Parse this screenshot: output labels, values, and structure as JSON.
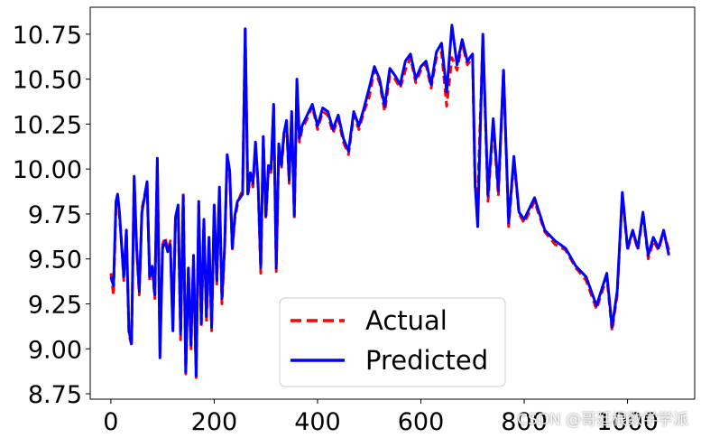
{
  "chart_data": {
    "type": "line",
    "xlim": [
      -40,
      1130
    ],
    "ylim": [
      8.72,
      10.9
    ],
    "x_ticks": [
      0,
      200,
      400,
      600,
      800,
      1000
    ],
    "y_ticks": [
      8.75,
      9.0,
      9.25,
      9.5,
      9.75,
      10.0,
      10.25,
      10.5,
      10.75
    ],
    "x_tick_labels": [
      "0",
      "200",
      "400",
      "600",
      "800",
      "1000"
    ],
    "y_tick_labels": [
      "8.75",
      "9.00",
      "9.25",
      "9.50",
      "9.75",
      "10.00",
      "10.25",
      "10.50",
      "10.75"
    ],
    "grid": false,
    "legend_position": "lower-center",
    "series": [
      {
        "name": "Actual",
        "style": "dashed",
        "color": "#ff0000",
        "x": [
          0,
          5,
          10,
          13,
          17,
          20,
          25,
          30,
          35,
          40,
          45,
          50,
          55,
          60,
          65,
          70,
          75,
          80,
          85,
          90,
          95,
          100,
          105,
          110,
          115,
          120,
          125,
          130,
          135,
          140,
          145,
          150,
          155,
          160,
          165,
          170,
          175,
          180,
          185,
          190,
          195,
          200,
          205,
          210,
          215,
          220,
          225,
          230,
          235,
          240,
          245,
          250,
          255,
          260,
          265,
          270,
          275,
          280,
          285,
          290,
          295,
          300,
          305,
          310,
          315,
          320,
          325,
          330,
          335,
          340,
          345,
          350,
          355,
          360,
          365,
          370,
          380,
          390,
          400,
          410,
          420,
          430,
          440,
          450,
          460,
          470,
          480,
          490,
          500,
          510,
          520,
          530,
          540,
          550,
          560,
          570,
          580,
          590,
          600,
          610,
          620,
          630,
          640,
          650,
          660,
          670,
          680,
          690,
          700,
          705,
          710,
          720,
          730,
          740,
          750,
          760,
          770,
          780,
          790,
          800,
          820,
          840,
          860,
          880,
          900,
          920,
          940,
          960,
          970,
          980,
          990,
          1000,
          1010,
          1020,
          1030,
          1040,
          1050,
          1060,
          1070,
          1080
        ],
        "y": [
          9.42,
          9.3,
          9.8,
          9.86,
          9.72,
          9.62,
          9.38,
          9.66,
          9.08,
          9.02,
          9.95,
          9.55,
          9.3,
          9.78,
          9.85,
          9.92,
          9.38,
          9.45,
          9.28,
          10.05,
          9.0,
          9.58,
          9.62,
          9.55,
          9.6,
          9.12,
          9.72,
          9.78,
          9.05,
          9.87,
          8.86,
          9.45,
          9.0,
          9.5,
          8.84,
          9.8,
          9.12,
          9.7,
          9.15,
          9.6,
          9.1,
          9.78,
          9.36,
          9.88,
          9.25,
          9.55,
          10.05,
          9.98,
          9.55,
          9.72,
          9.8,
          9.85,
          9.88,
          10.78,
          9.85,
          9.96,
          9.9,
          10.12,
          9.9,
          9.42,
          10.18,
          9.72,
          10.0,
          9.98,
          10.35,
          9.43,
          10.12,
          10.0,
          10.18,
          10.25,
          9.92,
          10.3,
          9.72,
          10.45,
          10.15,
          10.22,
          10.28,
          10.35,
          10.22,
          10.32,
          10.3,
          10.2,
          10.28,
          10.15,
          10.08,
          10.3,
          10.22,
          10.32,
          10.4,
          10.55,
          10.48,
          10.32,
          10.52,
          10.5,
          10.45,
          10.55,
          10.62,
          10.48,
          10.55,
          10.58,
          10.45,
          10.62,
          10.65,
          10.35,
          10.62,
          10.55,
          10.7,
          10.58,
          10.62,
          9.9,
          9.85,
          10.72,
          9.82,
          10.25,
          9.85,
          10.55,
          9.68,
          10.05,
          9.75,
          9.7,
          9.82,
          9.65,
          9.58,
          9.55,
          9.45,
          9.38,
          9.22,
          9.4,
          9.1,
          9.3,
          9.86,
          9.55,
          9.65,
          9.55,
          9.75,
          9.5,
          9.6,
          9.55,
          9.65,
          9.55
        ]
      },
      {
        "name": "Predicted",
        "style": "solid",
        "color": "#0000ff",
        "x": [
          0,
          5,
          10,
          13,
          17,
          20,
          25,
          30,
          35,
          40,
          45,
          50,
          55,
          60,
          65,
          70,
          75,
          80,
          85,
          90,
          95,
          100,
          105,
          110,
          115,
          120,
          125,
          130,
          135,
          140,
          145,
          150,
          155,
          160,
          165,
          170,
          175,
          180,
          185,
          190,
          195,
          200,
          205,
          210,
          215,
          220,
          225,
          230,
          235,
          240,
          245,
          250,
          255,
          260,
          265,
          270,
          275,
          280,
          285,
          290,
          295,
          300,
          305,
          310,
          315,
          320,
          325,
          330,
          335,
          340,
          345,
          350,
          355,
          360,
          365,
          370,
          380,
          390,
          400,
          410,
          420,
          430,
          440,
          450,
          460,
          470,
          480,
          490,
          500,
          510,
          520,
          530,
          540,
          550,
          560,
          570,
          580,
          590,
          600,
          610,
          620,
          630,
          640,
          650,
          660,
          670,
          680,
          690,
          700,
          705,
          710,
          720,
          730,
          740,
          750,
          760,
          770,
          780,
          790,
          800,
          820,
          840,
          860,
          880,
          900,
          920,
          940,
          960,
          970,
          980,
          990,
          1000,
          1010,
          1020,
          1030,
          1040,
          1050,
          1060,
          1070,
          1080
        ],
        "y": [
          9.4,
          9.35,
          9.82,
          9.86,
          9.75,
          9.6,
          9.4,
          9.66,
          9.1,
          9.03,
          9.96,
          9.56,
          9.32,
          9.76,
          9.84,
          9.93,
          9.4,
          9.46,
          9.3,
          10.06,
          8.95,
          9.56,
          9.6,
          9.54,
          9.58,
          9.1,
          9.73,
          9.8,
          9.08,
          9.85,
          8.87,
          9.45,
          9.02,
          9.52,
          8.85,
          9.82,
          9.14,
          9.72,
          9.18,
          9.62,
          9.12,
          9.8,
          9.38,
          9.9,
          9.28,
          9.56,
          10.08,
          9.99,
          9.56,
          9.74,
          9.82,
          9.84,
          9.86,
          10.78,
          9.86,
          9.98,
          9.92,
          10.15,
          9.92,
          9.45,
          10.18,
          9.74,
          10.02,
          10.0,
          10.36,
          9.45,
          10.14,
          10.02,
          10.2,
          10.27,
          9.94,
          10.32,
          9.74,
          10.5,
          10.17,
          10.24,
          10.3,
          10.36,
          10.24,
          10.34,
          10.32,
          10.22,
          10.3,
          10.17,
          10.1,
          10.32,
          10.24,
          10.34,
          10.45,
          10.57,
          10.5,
          10.35,
          10.56,
          10.52,
          10.47,
          10.6,
          10.64,
          10.5,
          10.57,
          10.6,
          10.47,
          10.65,
          10.7,
          10.43,
          10.8,
          10.58,
          10.72,
          10.6,
          10.64,
          9.92,
          9.68,
          10.75,
          9.85,
          10.28,
          9.88,
          10.55,
          9.7,
          10.07,
          9.76,
          9.72,
          9.84,
          9.66,
          9.6,
          9.56,
          9.46,
          9.4,
          9.24,
          9.42,
          9.12,
          9.32,
          9.87,
          9.56,
          9.66,
          9.56,
          9.76,
          9.52,
          9.62,
          9.56,
          9.66,
          9.52
        ]
      }
    ]
  },
  "watermark": "CSDN @哥廷根数学学派"
}
